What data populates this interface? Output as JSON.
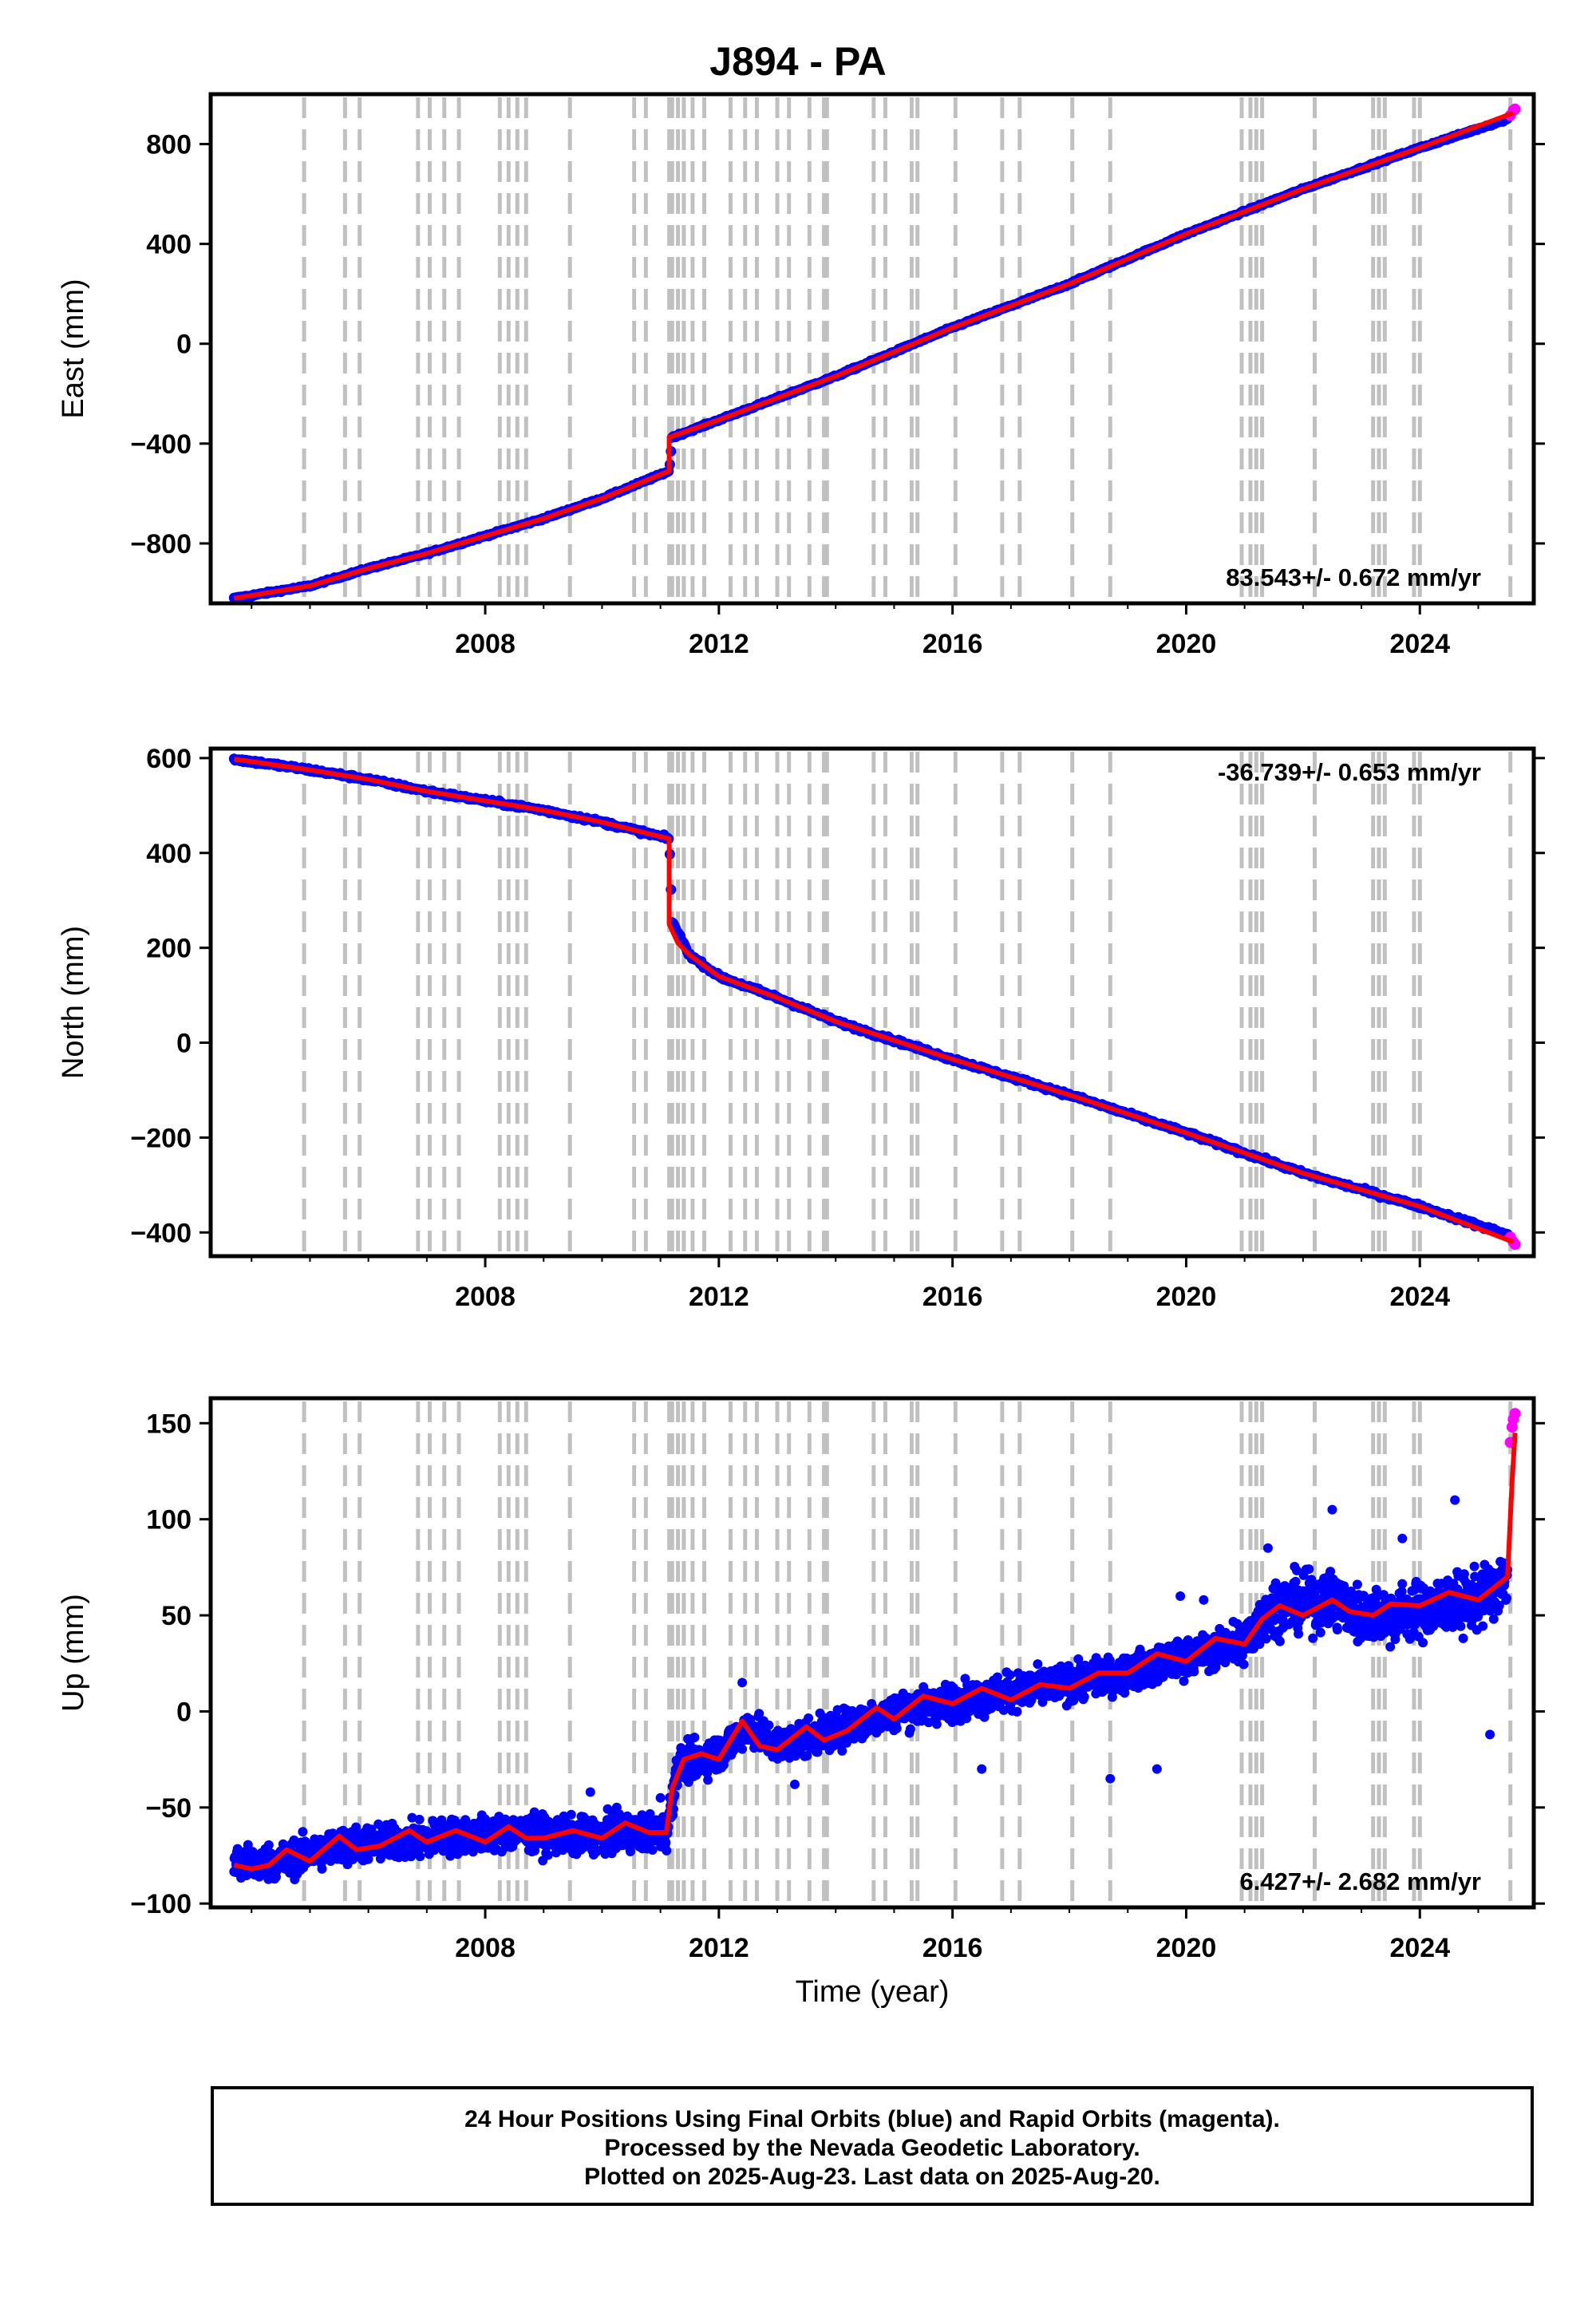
{
  "title": "J894 - PA",
  "footer": {
    "line1": "24 Hour Positions Using Final Orbits (blue) and Rapid Orbits (magenta).",
    "line2": "Processed by the Nevada Geodetic Laboratory.",
    "line3": "Plotted on 2025-Aug-23. Last data on 2025-Aug-20."
  },
  "colors": {
    "final_orbits": "#0000ff",
    "rapid_orbits": "#ff00ff",
    "model": "#ff0000",
    "equipment_change_lines": "#c0c0c0"
  },
  "equipment_change_years": [
    2004.9,
    2005.6,
    2005.85,
    2006.85,
    2007.05,
    2007.3,
    2007.55,
    2008.25,
    2008.4,
    2008.55,
    2008.7,
    2009.45,
    2010.55,
    2010.75,
    2011.15,
    2011.2,
    2011.3,
    2011.4,
    2011.55,
    2011.75,
    2012.2,
    2012.45,
    2012.65,
    2013.0,
    2013.2,
    2013.55,
    2013.8,
    2013.85,
    2014.65,
    2014.85,
    2015.3,
    2015.4,
    2016.05,
    2016.85,
    2017.15,
    2018.05,
    2018.7,
    2020.95,
    2021.1,
    2021.2,
    2021.3,
    2022.2,
    2023.2,
    2023.3,
    2023.4,
    2023.9,
    2024.0,
    2025.55
  ],
  "chart_data": [
    {
      "type": "scatter",
      "title": "J894 - PA",
      "xlabel": "",
      "ylabel": "East (mm)",
      "xlim": [
        2003.3,
        2025.95
      ],
      "ylim": [
        -1040,
        1000
      ],
      "xticks": [
        2008,
        2012,
        2016,
        2020,
        2024
      ],
      "xtick_labels": [
        "2008",
        "2012",
        "2016",
        "2020",
        "2024"
      ],
      "yticks": [
        800,
        400,
        0,
        -400,
        -800
      ],
      "ytick_labels": [
        "800",
        "400",
        "0",
        "−400",
        "−800"
      ],
      "rate_label": "83.543+/- 0.672 mm/yr",
      "rate_label_position": "bottom-right",
      "grid": false,
      "series": [
        {
          "role": "final_orbits",
          "x": [
            2003.7,
            2005.0,
            2006.0,
            2007.0,
            2008.0,
            2009.0,
            2010.0,
            2011.15,
            2011.2,
            2012.0,
            2014.0,
            2016.0,
            2018.0,
            2020.0,
            2022.0,
            2024.0,
            2025.5
          ],
          "y": [
            -1020,
            -970,
            -900,
            -840,
            -770,
            -700,
            -620,
            -510,
            -375,
            -305,
            -130,
            65,
            240,
            440,
            620,
            785,
            900
          ]
        },
        {
          "role": "rapid_orbits",
          "x": [
            2025.55,
            2025.6,
            2025.63
          ],
          "y": [
            915,
            935,
            940
          ]
        },
        {
          "role": "model",
          "x": [
            2003.7,
            2005.0,
            2006.0,
            2007.0,
            2008.0,
            2009.0,
            2010.0,
            2011.15,
            2011.15,
            2012.0,
            2014.0,
            2016.0,
            2018.0,
            2020.0,
            2022.0,
            2024.0,
            2025.6
          ],
          "y": [
            -1020,
            -970,
            -900,
            -840,
            -770,
            -700,
            -620,
            -510,
            -375,
            -305,
            -130,
            65,
            240,
            440,
            620,
            785,
            925
          ]
        }
      ]
    },
    {
      "type": "scatter",
      "title": "",
      "xlabel": "",
      "ylabel": "North (mm)",
      "xlim": [
        2003.3,
        2025.95
      ],
      "ylim": [
        -450,
        620
      ],
      "xticks": [
        2008,
        2012,
        2016,
        2020,
        2024
      ],
      "xtick_labels": [
        "2008",
        "2012",
        "2016",
        "2020",
        "2024"
      ],
      "yticks": [
        600,
        400,
        200,
        0,
        -200,
        -400
      ],
      "ytick_labels": [
        "600",
        "400",
        "200",
        "0",
        "−200",
        "−400"
      ],
      "rate_label": "-36.739+/- 0.653 mm/yr",
      "rate_label_position": "top-right",
      "grid": false,
      "series": [
        {
          "role": "final_orbits",
          "x": [
            2003.7,
            2005.0,
            2006.0,
            2007.0,
            2008.0,
            2009.0,
            2010.0,
            2011.15,
            2011.2,
            2011.5,
            2012.0,
            2013.0,
            2014.0,
            2016.0,
            2018.0,
            2020.0,
            2022.0,
            2024.0,
            2025.5
          ],
          "y": [
            598,
            575,
            555,
            530,
            510,
            490,
            465,
            430,
            255,
            185,
            140,
            95,
            45,
            -35,
            -110,
            -190,
            -275,
            -345,
            -405
          ]
        },
        {
          "role": "rapid_orbits",
          "x": [
            2025.55,
            2025.6,
            2025.63
          ],
          "y": [
            -410,
            -420,
            -425
          ]
        },
        {
          "role": "model",
          "x": [
            2003.7,
            2005.0,
            2006.0,
            2007.0,
            2008.0,
            2009.0,
            2010.0,
            2011.15,
            2011.15,
            2011.3,
            2011.5,
            2012.0,
            2013.0,
            2014.0,
            2016.0,
            2018.0,
            2020.0,
            2022.0,
            2024.0,
            2025.6
          ],
          "y": [
            598,
            575,
            555,
            530,
            510,
            490,
            465,
            430,
            250,
            210,
            185,
            140,
            95,
            45,
            -35,
            -110,
            -190,
            -275,
            -345,
            -420
          ]
        }
      ]
    },
    {
      "type": "scatter",
      "title": "",
      "xlabel": "Time (year)",
      "ylabel": "Up (mm)",
      "xlim": [
        2003.3,
        2025.95
      ],
      "ylim": [
        -102,
        163
      ],
      "xticks": [
        2008,
        2012,
        2016,
        2020,
        2024
      ],
      "xtick_labels": [
        "2008",
        "2012",
        "2016",
        "2020",
        "2024"
      ],
      "yticks": [
        150,
        100,
        50,
        0,
        -50,
        -100
      ],
      "ytick_labels": [
        "150",
        "100",
        "50",
        "0",
        "−50",
        "−100"
      ],
      "rate_label": "6.427+/- 2.682 mm/yr",
      "rate_label_position": "bottom-right",
      "grid": false,
      "series": [
        {
          "role": "final_orbits",
          "x": [
            2003.7,
            2004.5,
            2005.5,
            2006.5,
            2007.5,
            2008.5,
            2009.5,
            2010.5,
            2011.1,
            2011.3,
            2012.0,
            2012.5,
            2013.0,
            2014.0,
            2015.0,
            2016.0,
            2017.0,
            2018.0,
            2019.0,
            2020.0,
            2021.0,
            2021.5,
            2022.5,
            2023.0,
            2024.0,
            2025.0,
            2025.5
          ],
          "y": [
            -80,
            -78,
            -70,
            -68,
            -65,
            -63,
            -65,
            -63,
            -63,
            -28,
            -22,
            -8,
            -18,
            -10,
            0,
            5,
            10,
            15,
            20,
            28,
            36,
            55,
            58,
            50,
            52,
            58,
            68
          ]
        },
        {
          "role": "rapid_orbits",
          "x": [
            2025.55,
            2025.58,
            2025.6,
            2025.63
          ],
          "y": [
            140,
            148,
            152,
            155
          ]
        },
        {
          "role": "model",
          "x": [
            2003.7,
            2004.0,
            2004.3,
            2004.6,
            2005.0,
            2005.5,
            2005.8,
            2006.2,
            2006.7,
            2007.0,
            2007.5,
            2008.0,
            2008.4,
            2008.7,
            2009.0,
            2009.5,
            2010.0,
            2010.4,
            2010.8,
            2011.1,
            2011.2,
            2011.4,
            2011.7,
            2012.0,
            2012.4,
            2012.7,
            2013.0,
            2013.5,
            2013.8,
            2014.2,
            2014.7,
            2015.0,
            2015.5,
            2016.0,
            2016.5,
            2017.0,
            2017.5,
            2018.0,
            2018.5,
            2019.0,
            2019.5,
            2020.0,
            2020.5,
            2021.0,
            2021.3,
            2021.6,
            2022.0,
            2022.5,
            2022.8,
            2023.2,
            2023.5,
            2024.0,
            2024.5,
            2025.0,
            2025.5,
            2025.58,
            2025.63
          ],
          "y": [
            -80,
            -82,
            -80,
            -72,
            -78,
            -65,
            -72,
            -70,
            -62,
            -68,
            -62,
            -68,
            -60,
            -66,
            -66,
            -62,
            -66,
            -58,
            -63,
            -63,
            -40,
            -25,
            -22,
            -25,
            -5,
            -18,
            -20,
            -8,
            -15,
            -10,
            2,
            -4,
            8,
            4,
            12,
            6,
            14,
            12,
            20,
            20,
            30,
            26,
            38,
            35,
            48,
            55,
            50,
            58,
            52,
            50,
            56,
            55,
            62,
            58,
            70,
            120,
            145
          ]
        }
      ]
    }
  ]
}
